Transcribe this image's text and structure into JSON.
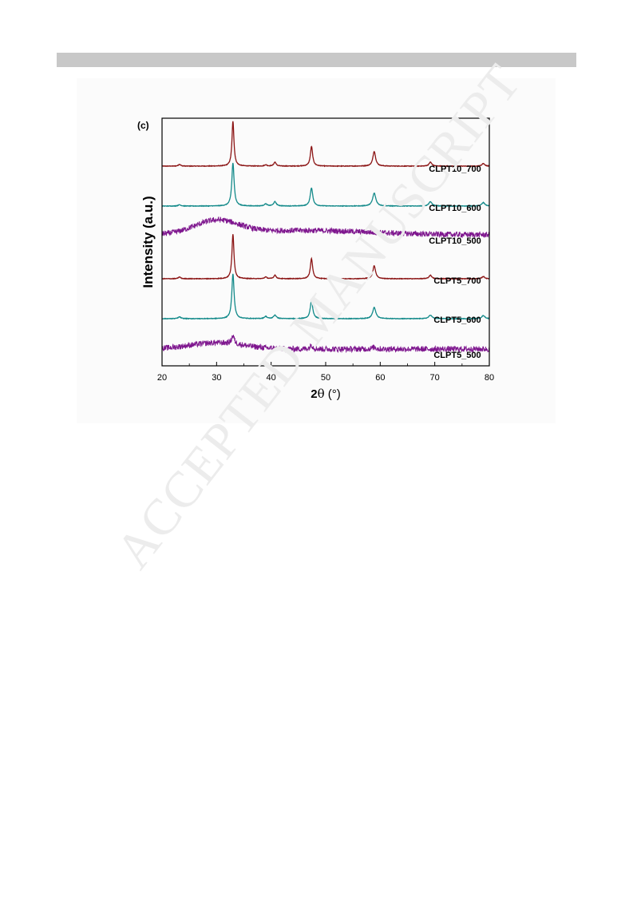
{
  "page": {
    "watermark": "ACCEPTED MANUSCRIPT"
  },
  "chart_data": {
    "type": "line",
    "panel_label": "(c)",
    "title": "",
    "xlabel_prefix": "2",
    "xlabel_symbol": "θ",
    "xlabel_suffix": " (°)",
    "ylabel": "Intensity (a.u.)",
    "xlim": [
      20,
      80
    ],
    "xticks": [
      20,
      30,
      40,
      50,
      60,
      70,
      80
    ],
    "grid": false,
    "legend": "none (labels placed beside each trace)",
    "colors": {
      "700": "#8b1414",
      "600": "#138a8a",
      "500": "#7e168e"
    },
    "series": [
      {
        "name": "CLPT10_700",
        "color": "#8b1414",
        "kind": "crystalline",
        "noise": 0.0,
        "peaks": [
          [
            23.2,
            0.04,
            0.25
          ],
          [
            33.0,
            1.0,
            0.22
          ],
          [
            39.0,
            0.03,
            0.25
          ],
          [
            40.7,
            0.09,
            0.25
          ],
          [
            47.4,
            0.44,
            0.25
          ],
          [
            58.9,
            0.33,
            0.3
          ],
          [
            69.2,
            0.09,
            0.3
          ],
          [
            78.9,
            0.06,
            0.3
          ]
        ]
      },
      {
        "name": "CLPT10_600",
        "color": "#138a8a",
        "kind": "crystalline",
        "noise": 0.0,
        "peaks": [
          [
            23.2,
            0.03,
            0.3
          ],
          [
            33.0,
            1.0,
            0.25
          ],
          [
            39.0,
            0.05,
            0.3
          ],
          [
            40.7,
            0.1,
            0.3
          ],
          [
            47.4,
            0.42,
            0.28
          ],
          [
            58.9,
            0.3,
            0.35
          ],
          [
            69.2,
            0.1,
            0.35
          ],
          [
            78.9,
            0.08,
            0.35
          ]
        ]
      },
      {
        "name": "CLPT10_500",
        "color": "#7e168e",
        "kind": "amorphous",
        "noise": 0.16,
        "peaks": [],
        "hump": [
          [
            30.0,
            0.75,
            4.0
          ],
          [
            46.0,
            0.25,
            12.0
          ]
        ]
      },
      {
        "name": "CLPT5_700",
        "color": "#8b1414",
        "kind": "crystalline",
        "noise": 0.0,
        "peaks": [
          [
            23.2,
            0.04,
            0.25
          ],
          [
            33.0,
            1.0,
            0.22
          ],
          [
            39.0,
            0.04,
            0.25
          ],
          [
            40.7,
            0.08,
            0.25
          ],
          [
            47.4,
            0.45,
            0.25
          ],
          [
            58.9,
            0.29,
            0.3
          ],
          [
            69.2,
            0.08,
            0.3
          ],
          [
            78.9,
            0.05,
            0.3
          ]
        ]
      },
      {
        "name": "CLPT5_600",
        "color": "#138a8a",
        "kind": "crystalline",
        "noise": 0.0,
        "peaks": [
          [
            23.2,
            0.04,
            0.3
          ],
          [
            33.0,
            1.0,
            0.25
          ],
          [
            39.0,
            0.05,
            0.3
          ],
          [
            40.7,
            0.08,
            0.3
          ],
          [
            47.4,
            0.4,
            0.28
          ],
          [
            58.9,
            0.25,
            0.35
          ],
          [
            69.2,
            0.08,
            0.35
          ],
          [
            78.9,
            0.07,
            0.35
          ]
        ]
      },
      {
        "name": "CLPT5_500",
        "color": "#7e168e",
        "kind": "amorphous",
        "noise": 0.14,
        "peaks": [
          [
            33.0,
            0.4,
            0.3
          ],
          [
            47.4,
            0.2,
            0.3
          ],
          [
            58.9,
            0.1,
            0.35
          ]
        ],
        "hump": [
          [
            30.0,
            0.3,
            5.0
          ]
        ]
      }
    ]
  }
}
